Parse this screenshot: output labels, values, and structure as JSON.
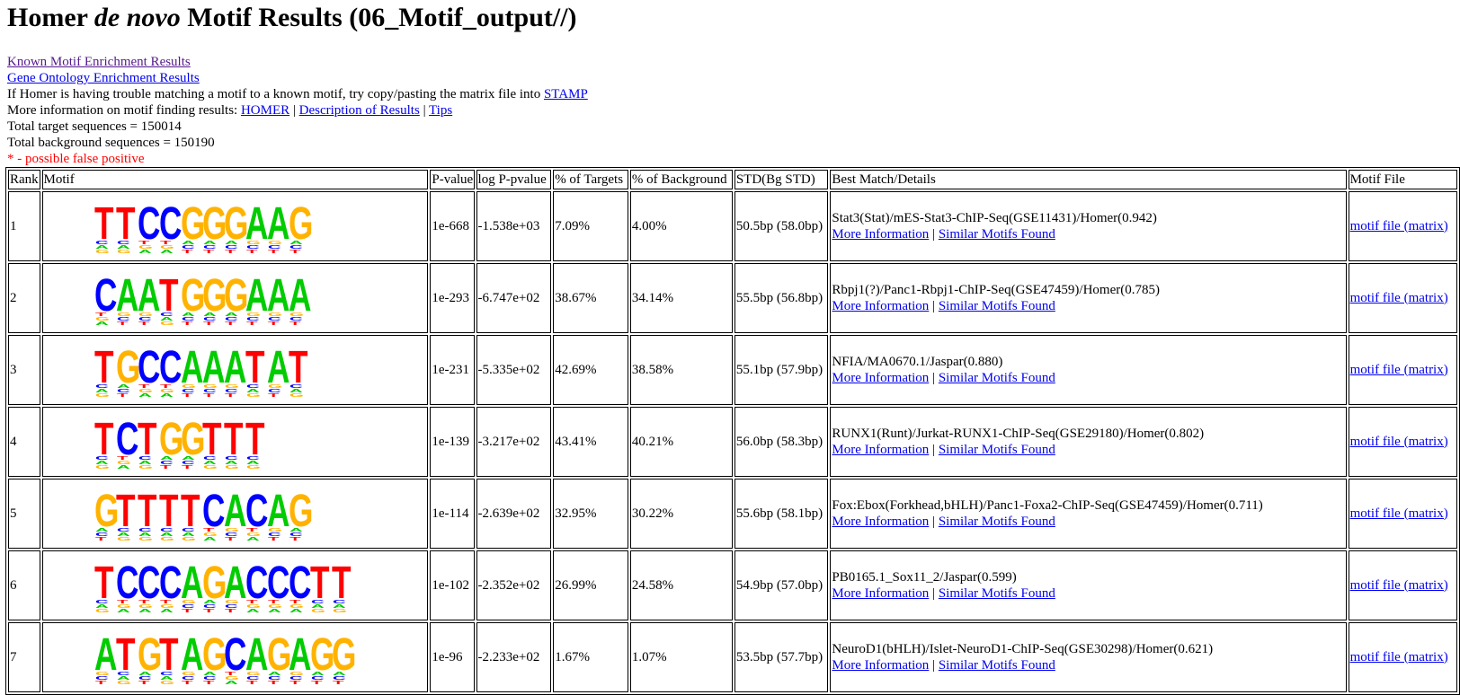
{
  "title": {
    "prefix": "Homer ",
    "italic": "de novo",
    "suffix": " Motif Results (06_Motif_output//)"
  },
  "links": {
    "known": "Known Motif Enrichment Results",
    "go": "Gene Ontology Enrichment Results"
  },
  "info": {
    "stamp_text": "If Homer is having trouble matching a motif to a known motif, try copy/pasting the matrix file into ",
    "stamp_link": "STAMP",
    "more_text": "More information on motif finding results: ",
    "homer_link": "HOMER",
    "sep": " | ",
    "desc_link": "Description of Results",
    "tips_link": "Tips",
    "targets": "Total target sequences = 150014",
    "background": "Total background sequences = 150190",
    "false_positive": "* - possible false positive"
  },
  "columns": [
    "Rank",
    "Motif",
    "P-value",
    "log P-pvalue",
    "% of Targets",
    "% of Background",
    "STD(Bg STD)",
    "Best Match/Details",
    "Motif File"
  ],
  "colors": {
    "A": "#00cc00",
    "C": "#0000ff",
    "G": "#ffb300",
    "T": "#ff0000",
    "link": "#0000ee",
    "visited": "#551a8b"
  },
  "row_links": {
    "more": "More Information",
    "similar": "Similar Motifs Found",
    "file": "motif file (matrix)"
  },
  "rows": [
    {
      "rank": "1",
      "pvalue": "1e-668",
      "logp": "-1.538e+03",
      "targets": "7.09%",
      "background": "4.00%",
      "std": "50.5bp (58.0bp)",
      "match": "Stat3(Stat)/mES-Stat3-ChIP-Seq(GSE11431)/Homer(0.942)",
      "motif": "TTCCGGGAAG"
    },
    {
      "rank": "2",
      "pvalue": "1e-293",
      "logp": "-6.747e+02",
      "targets": "38.67%",
      "background": "34.14%",
      "std": "55.5bp (56.8bp)",
      "match": "Rbpj1(?)/Panc1-Rbpj1-ChIP-Seq(GSE47459)/Homer(0.785)",
      "motif": "CAATGGGAAA"
    },
    {
      "rank": "3",
      "pvalue": "1e-231",
      "logp": "-5.335e+02",
      "targets": "42.69%",
      "background": "38.58%",
      "std": "55.1bp (57.9bp)",
      "match": "NFIA/MA0670.1/Jaspar(0.880)",
      "motif": "TGCCAAATAT"
    },
    {
      "rank": "4",
      "pvalue": "1e-139",
      "logp": "-3.217e+02",
      "targets": "43.41%",
      "background": "40.21%",
      "std": "56.0bp (58.3bp)",
      "match": "RUNX1(Runt)/Jurkat-RUNX1-ChIP-Seq(GSE29180)/Homer(0.802)",
      "motif": "TCTGGTTT"
    },
    {
      "rank": "5",
      "pvalue": "1e-114",
      "logp": "-2.639e+02",
      "targets": "32.95%",
      "background": "30.22%",
      "std": "55.6bp (58.1bp)",
      "match": "Fox:Ebox(Forkhead,bHLH)/Panc1-Foxa2-ChIP-Seq(GSE47459)/Homer(0.711)",
      "motif": "GTTTTCACAG"
    },
    {
      "rank": "6",
      "pvalue": "1e-102",
      "logp": "-2.352e+02",
      "targets": "26.99%",
      "background": "24.58%",
      "std": "54.9bp (57.0bp)",
      "match": "PB0165.1_Sox11_2/Jaspar(0.599)",
      "motif": "TCCCAGACCCTT"
    },
    {
      "rank": "7",
      "pvalue": "1e-96",
      "logp": "-2.233e+02",
      "targets": "1.67%",
      "background": "1.07%",
      "std": "53.5bp (57.7bp)",
      "match": "NeuroD1(bHLH)/Islet-NeuroD1-ChIP-Seq(GSE30298)/Homer(0.621)",
      "motif": "ATGTAGCAGAGG"
    }
  ]
}
